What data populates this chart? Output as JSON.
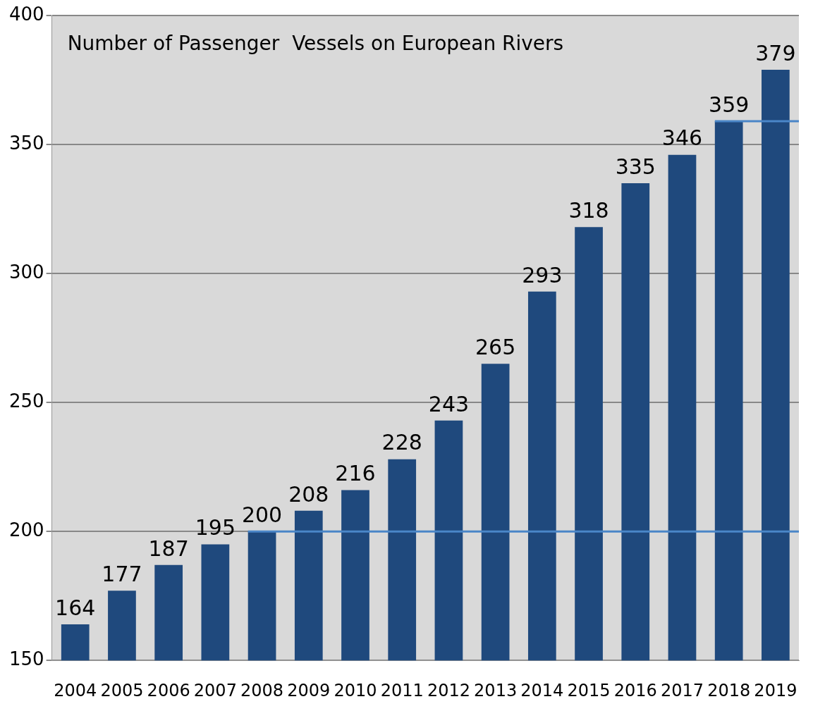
{
  "chart_data": {
    "type": "bar",
    "title": "Number of Passenger  Vessels on European Rivers",
    "categories": [
      "2004",
      "2005",
      "2006",
      "2007",
      "2008",
      "2009",
      "2010",
      "2011",
      "2012",
      "2013",
      "2014",
      "2015",
      "2016",
      "2017",
      "2018",
      "2019"
    ],
    "values": [
      164,
      177,
      187,
      195,
      200,
      208,
      216,
      228,
      243,
      265,
      293,
      318,
      335,
      346,
      359,
      379
    ],
    "color": "#1f497d",
    "ylim": [
      150,
      400
    ],
    "yticks": [
      150,
      200,
      250,
      300,
      350,
      400
    ],
    "grid": "y",
    "legend": false,
    "data_labels": true,
    "ref_lines": [
      {
        "axis": "y",
        "value": 200,
        "color": "#4a86c8"
      },
      {
        "axis": "y",
        "value": 359,
        "color": "#4a86c8"
      }
    ]
  }
}
